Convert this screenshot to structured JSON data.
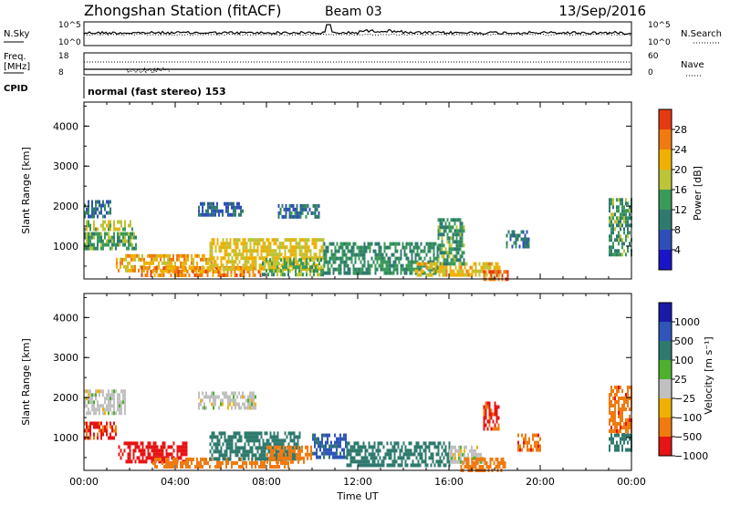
{
  "header": {
    "station": "Zhongshan Station (fitACF)",
    "beam": "Beam 03",
    "date": "13/Sep/2016"
  },
  "strips": {
    "nsky_label": "N.Sky",
    "nsky_ticks": [
      "10^5",
      "10^0"
    ],
    "nsearch_label": "N.Search",
    "nsearch_ticks": [
      "10^5",
      "10^0"
    ],
    "freq_label_1": "Freq.",
    "freq_label_2": "[MHz]",
    "freq_ticks": [
      "18",
      "8"
    ],
    "nave_label": "Nave",
    "nave_ticks": [
      "60",
      "0"
    ],
    "cpid_label": "CPID",
    "cpid_text": "normal (fast stereo) 153"
  },
  "chart_data": [
    {
      "type": "heatmap",
      "name": "power-panel",
      "ylabel": "Slant Range [km]",
      "y_ticks": [
        "4000",
        "3000",
        "2000",
        "1000"
      ],
      "y_tick_values": [
        4000,
        3000,
        2000,
        1000
      ],
      "ylim": [
        180,
        4600
      ],
      "xlim": [
        0,
        24
      ],
      "colorbar": {
        "label": "Power [dB]",
        "ticks": [
          "28",
          "24",
          "20",
          "16",
          "12",
          "8",
          "4"
        ],
        "tick_values": [
          28,
          24,
          20,
          16,
          12,
          8,
          4
        ],
        "range": [
          0,
          32
        ],
        "colors": [
          "#1a14c8",
          "#2f4fb8",
          "#2f7a6e",
          "#3a9a58",
          "#bcc43a",
          "#f0b000",
          "#f07a10",
          "#e63a10"
        ]
      },
      "regions": [
        {
          "t0": 0.0,
          "t1": 1.2,
          "r0": 1700,
          "r1": 2150,
          "v": 9
        },
        {
          "t0": 0.0,
          "t1": 2.1,
          "r0": 1400,
          "r1": 1650,
          "v": 18
        },
        {
          "t0": 0.0,
          "t1": 2.3,
          "r0": 950,
          "r1": 1350,
          "v": 14
        },
        {
          "t0": 1.4,
          "t1": 5.8,
          "r0": 350,
          "r1": 800,
          "v": 22
        },
        {
          "t0": 2.5,
          "t1": 7.8,
          "r0": 250,
          "r1": 500,
          "v": 25
        },
        {
          "t0": 5.0,
          "t1": 7.0,
          "r0": 1750,
          "r1": 2100,
          "v": 8
        },
        {
          "t0": 5.5,
          "t1": 10.5,
          "r0": 450,
          "r1": 1200,
          "v": 20
        },
        {
          "t0": 7.8,
          "t1": 10.5,
          "r0": 300,
          "r1": 700,
          "v": 15
        },
        {
          "t0": 8.5,
          "t1": 10.3,
          "r0": 1700,
          "r1": 2050,
          "v": 9
        },
        {
          "t0": 10.5,
          "t1": 15.5,
          "r0": 300,
          "r1": 1100,
          "v": 12
        },
        {
          "t0": 14.5,
          "t1": 18.2,
          "r0": 250,
          "r1": 600,
          "v": 21
        },
        {
          "t0": 15.5,
          "t1": 16.7,
          "r0": 600,
          "r1": 1700,
          "v": 13
        },
        {
          "t0": 17.5,
          "t1": 18.6,
          "r0": 200,
          "r1": 400,
          "v": 28
        },
        {
          "t0": 18.5,
          "t1": 19.5,
          "r0": 1000,
          "r1": 1400,
          "v": 9
        },
        {
          "t0": 23.0,
          "t1": 24.0,
          "r0": 800,
          "r1": 2200,
          "v": 13
        }
      ]
    },
    {
      "type": "heatmap",
      "name": "velocity-panel",
      "ylabel": "Slant Range [km]",
      "y_ticks": [
        "4000",
        "3000",
        "2000",
        "1000"
      ],
      "y_tick_values": [
        4000,
        3000,
        2000,
        1000
      ],
      "ylim": [
        180,
        4600
      ],
      "xlim": [
        0,
        24
      ],
      "x_ticks": [
        "00:00",
        "04:00",
        "08:00",
        "12:00",
        "16:00",
        "20:00",
        "00:00"
      ],
      "x_tick_values": [
        0,
        4,
        8,
        12,
        16,
        20,
        24
      ],
      "xlabel": "Time UT",
      "colorbar": {
        "label": "Velocity [m s⁻¹]",
        "ticks": [
          "1000",
          "500",
          "100",
          "25",
          "−25",
          "−100",
          "−500",
          "−1000"
        ],
        "tick_values": [
          1000,
          500,
          100,
          25,
          -25,
          -100,
          -500,
          -1000
        ],
        "colors": [
          "#1a1aa8",
          "#2f55b8",
          "#2f7a6e",
          "#4fb030",
          "#c0c0c0",
          "#f0b000",
          "#f07a10",
          "#e61414"
        ]
      },
      "regions": [
        {
          "t0": 0.0,
          "t1": 1.8,
          "r0": 1650,
          "r1": 2200,
          "v": 0
        },
        {
          "t0": 0.0,
          "t1": 1.5,
          "r0": 1000,
          "r1": 1400,
          "v": -600
        },
        {
          "t0": 1.5,
          "t1": 4.5,
          "r0": 400,
          "r1": 900,
          "v": -800
        },
        {
          "t0": 3.0,
          "t1": 9.0,
          "r0": 250,
          "r1": 500,
          "v": -200
        },
        {
          "t0": 5.0,
          "t1": 7.5,
          "r0": 1700,
          "r1": 2150,
          "v": 0
        },
        {
          "t0": 5.5,
          "t1": 9.5,
          "r0": 500,
          "r1": 1150,
          "v": 150
        },
        {
          "t0": 8.0,
          "t1": 10.0,
          "r0": 400,
          "r1": 800,
          "v": -200
        },
        {
          "t0": 10.0,
          "t1": 11.5,
          "r0": 500,
          "r1": 1100,
          "v": 600
        },
        {
          "t0": 11.5,
          "t1": 16.0,
          "r0": 350,
          "r1": 900,
          "v": 150
        },
        {
          "t0": 16.0,
          "t1": 17.5,
          "r0": 400,
          "r1": 800,
          "v": 0
        },
        {
          "t0": 16.5,
          "t1": 18.5,
          "r0": 200,
          "r1": 500,
          "v": -200
        },
        {
          "t0": 17.5,
          "t1": 18.2,
          "r0": 1250,
          "r1": 1900,
          "v": -600
        },
        {
          "t0": 19.0,
          "t1": 20.0,
          "r0": 700,
          "r1": 1100,
          "v": -400
        },
        {
          "t0": 23.0,
          "t1": 24.0,
          "r0": 1100,
          "r1": 2300,
          "v": -400
        },
        {
          "t0": 23.0,
          "t1": 24.0,
          "r0": 700,
          "r1": 1100,
          "v": 150
        }
      ]
    }
  ]
}
